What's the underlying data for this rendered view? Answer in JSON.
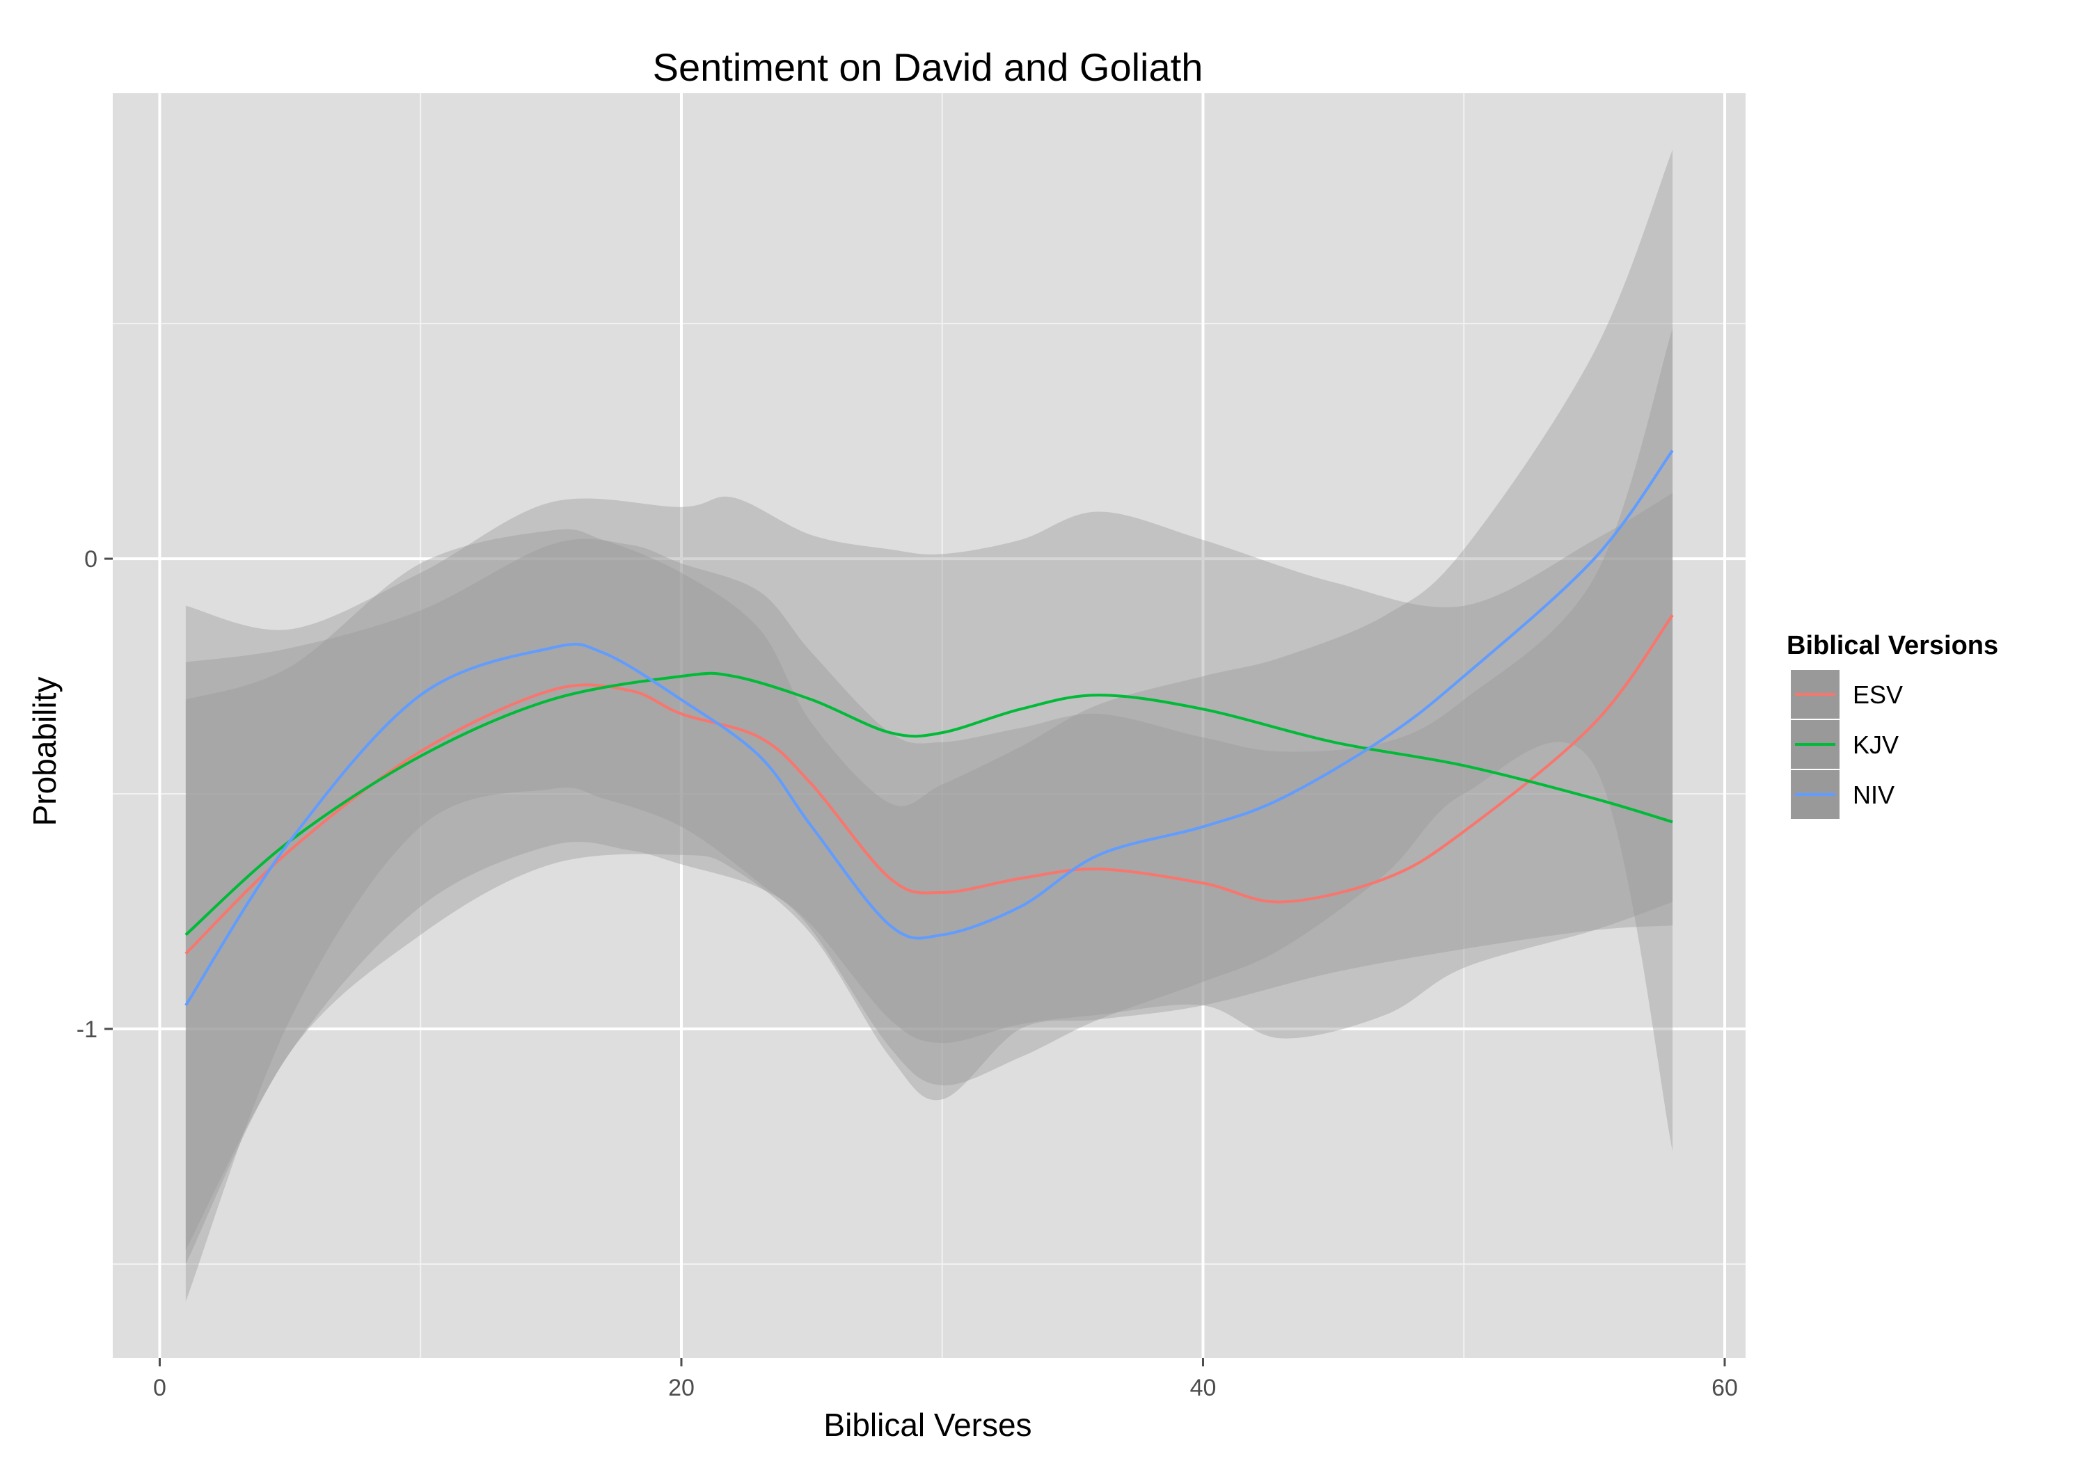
{
  "chart_data": {
    "type": "line",
    "title": "Sentiment on David and Goliath",
    "xlabel": "Biblical Verses",
    "ylabel": "Probability",
    "xlim": [
      -1.8,
      60.8
    ],
    "ylim": [
      -1.7,
      0.99
    ],
    "x_ticks": [
      0,
      20,
      40,
      60
    ],
    "x_tick_labels": [
      "0",
      "20",
      "40",
      "60"
    ],
    "y_ticks": [
      0,
      -1
    ],
    "y_tick_labels": [
      "0",
      "-1"
    ],
    "grid": true,
    "legend_title": "Biblical Versions",
    "legend_position": "right",
    "band_color": "#999999",
    "panel_color": "#dedede",
    "series": [
      {
        "name": "ESV",
        "color": "#f8766d",
        "x": [
          1,
          5,
          10,
          15,
          18,
          20,
          23,
          25,
          28,
          30,
          33,
          36,
          40,
          43,
          47,
          50,
          55,
          58
        ],
        "y": [
          -0.84,
          -0.62,
          -0.41,
          -0.28,
          -0.28,
          -0.33,
          -0.38,
          -0.48,
          -0.68,
          -0.71,
          -0.68,
          -0.66,
          -0.69,
          -0.73,
          -0.68,
          -0.58,
          -0.35,
          -0.12
        ],
        "upper": [
          -0.22,
          -0.19,
          -0.11,
          0.03,
          0.03,
          -0.01,
          -0.07,
          -0.2,
          -0.37,
          -0.39,
          -0.36,
          -0.33,
          -0.38,
          -0.41,
          -0.39,
          -0.3,
          -0.04,
          0.49
        ],
        "lower": [
          -1.47,
          -1.05,
          -0.74,
          -0.61,
          -0.62,
          -0.65,
          -0.7,
          -0.78,
          -0.98,
          -1.03,
          -0.99,
          -0.97,
          -0.95,
          -1.02,
          -0.97,
          -0.87,
          -0.79,
          -0.73
        ]
      },
      {
        "name": "KJV",
        "color": "#00ba38",
        "x": [
          1,
          5,
          10,
          15,
          20,
          22,
          25,
          28,
          30,
          33,
          36,
          40,
          45,
          50,
          55,
          58
        ],
        "y": [
          -0.8,
          -0.6,
          -0.42,
          -0.3,
          -0.25,
          -0.25,
          -0.3,
          -0.37,
          -0.37,
          -0.32,
          -0.29,
          -0.32,
          -0.39,
          -0.44,
          -0.51,
          -0.56
        ],
        "upper": [
          -0.1,
          -0.15,
          -0.03,
          0.12,
          0.11,
          0.13,
          0.05,
          0.02,
          0.01,
          0.04,
          0.1,
          0.04,
          -0.05,
          -0.1,
          0.04,
          0.14
        ],
        "lower": [
          -1.5,
          -1.05,
          -0.8,
          -0.65,
          -0.63,
          -0.66,
          -0.8,
          -1.06,
          -1.15,
          -1.0,
          -0.98,
          -0.95,
          -0.88,
          -0.83,
          -0.79,
          -0.78
        ]
      },
      {
        "name": "NIV",
        "color": "#619cff",
        "x": [
          1,
          5,
          10,
          15,
          17,
          20,
          23,
          25,
          28,
          30,
          33,
          36,
          40,
          43,
          47,
          50,
          55,
          58
        ],
        "y": [
          -0.95,
          -0.6,
          -0.29,
          -0.19,
          -0.2,
          -0.3,
          -0.42,
          -0.57,
          -0.78,
          -0.8,
          -0.74,
          -0.63,
          -0.57,
          -0.51,
          -0.38,
          -0.25,
          0.0,
          0.23
        ],
        "upper": [
          -0.3,
          -0.23,
          -0.01,
          0.06,
          0.04,
          -0.03,
          -0.15,
          -0.35,
          -0.52,
          -0.48,
          -0.4,
          -0.31,
          -0.25,
          -0.21,
          -0.12,
          0.02,
          0.44,
          0.87
        ],
        "lower": [
          -1.58,
          -0.98,
          -0.57,
          -0.49,
          -0.51,
          -0.57,
          -0.69,
          -0.79,
          -1.04,
          -1.12,
          -1.06,
          -0.98,
          -0.9,
          -0.83,
          -0.67,
          -0.5,
          -0.44,
          -1.26
        ]
      }
    ]
  }
}
